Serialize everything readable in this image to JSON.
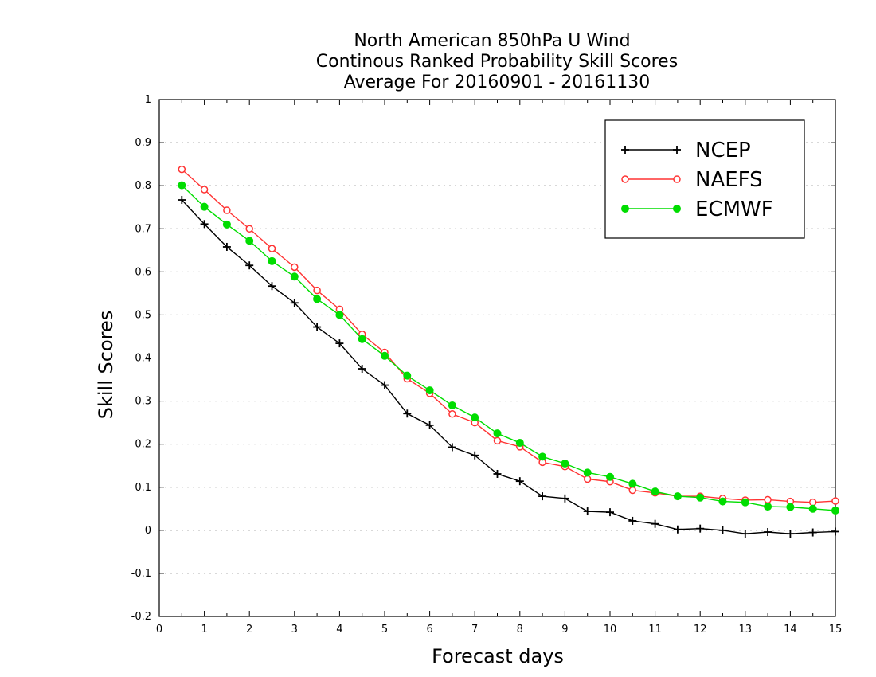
{
  "chart_data": {
    "type": "line",
    "title": [
      "North American 850hPa U Wind",
      "Continous Ranked Probability Skill Scores",
      "Average For 20160901 - 20161130"
    ],
    "xlabel": "Forecast days",
    "ylabel": "Skill Scores",
    "xlim": [
      0,
      15
    ],
    "ylim": [
      -0.2,
      1
    ],
    "x_ticks": [
      "0",
      "1",
      "2",
      "3",
      "4",
      "5",
      "6",
      "7",
      "8",
      "9",
      "10",
      "11",
      "12",
      "13",
      "14",
      "15"
    ],
    "y_ticks": [
      "-0.2",
      "-0.1",
      "0",
      "0.1",
      "0.2",
      "0.3",
      "0.4",
      "0.5",
      "0.6",
      "0.7",
      "0.8",
      "0.9",
      "1"
    ],
    "grid": "horizontal dotted",
    "legend_position": "top-right",
    "x": [
      0.5,
      1,
      1.5,
      2,
      2.5,
      3,
      3.5,
      4,
      4.5,
      5,
      5.5,
      6,
      6.5,
      7,
      7.5,
      8,
      8.5,
      9,
      9.5,
      10,
      10.5,
      11,
      11.5,
      12,
      12.5,
      13,
      13.5,
      14,
      14.5,
      15
    ],
    "series": [
      {
        "name": "NCEP",
        "color": "#000000",
        "marker": "plus",
        "values": [
          0.767,
          0.711,
          0.658,
          0.615,
          0.567,
          0.528,
          0.472,
          0.434,
          0.375,
          0.337,
          0.271,
          0.244,
          0.193,
          0.174,
          0.131,
          0.114,
          0.079,
          0.074,
          0.044,
          0.042,
          0.022,
          0.015,
          0.002,
          0.004,
          0.0,
          -0.008,
          -0.004,
          -0.008,
          -0.005,
          -0.003
        ]
      },
      {
        "name": "NAEFS",
        "color": "#ff3333",
        "marker": "open-circle",
        "values": [
          0.838,
          0.791,
          0.743,
          0.7,
          0.654,
          0.611,
          0.557,
          0.513,
          0.455,
          0.413,
          0.352,
          0.318,
          0.27,
          0.25,
          0.208,
          0.194,
          0.158,
          0.148,
          0.119,
          0.113,
          0.093,
          0.087,
          0.079,
          0.079,
          0.074,
          0.07,
          0.071,
          0.067,
          0.065,
          0.068
        ]
      },
      {
        "name": "ECMWF",
        "color": "#00dd00",
        "marker": "filled-circle",
        "values": [
          0.801,
          0.751,
          0.71,
          0.672,
          0.625,
          0.589,
          0.537,
          0.5,
          0.444,
          0.405,
          0.359,
          0.325,
          0.29,
          0.262,
          0.225,
          0.203,
          0.171,
          0.155,
          0.134,
          0.124,
          0.108,
          0.09,
          0.079,
          0.076,
          0.067,
          0.065,
          0.055,
          0.054,
          0.05,
          0.046
        ]
      }
    ]
  }
}
